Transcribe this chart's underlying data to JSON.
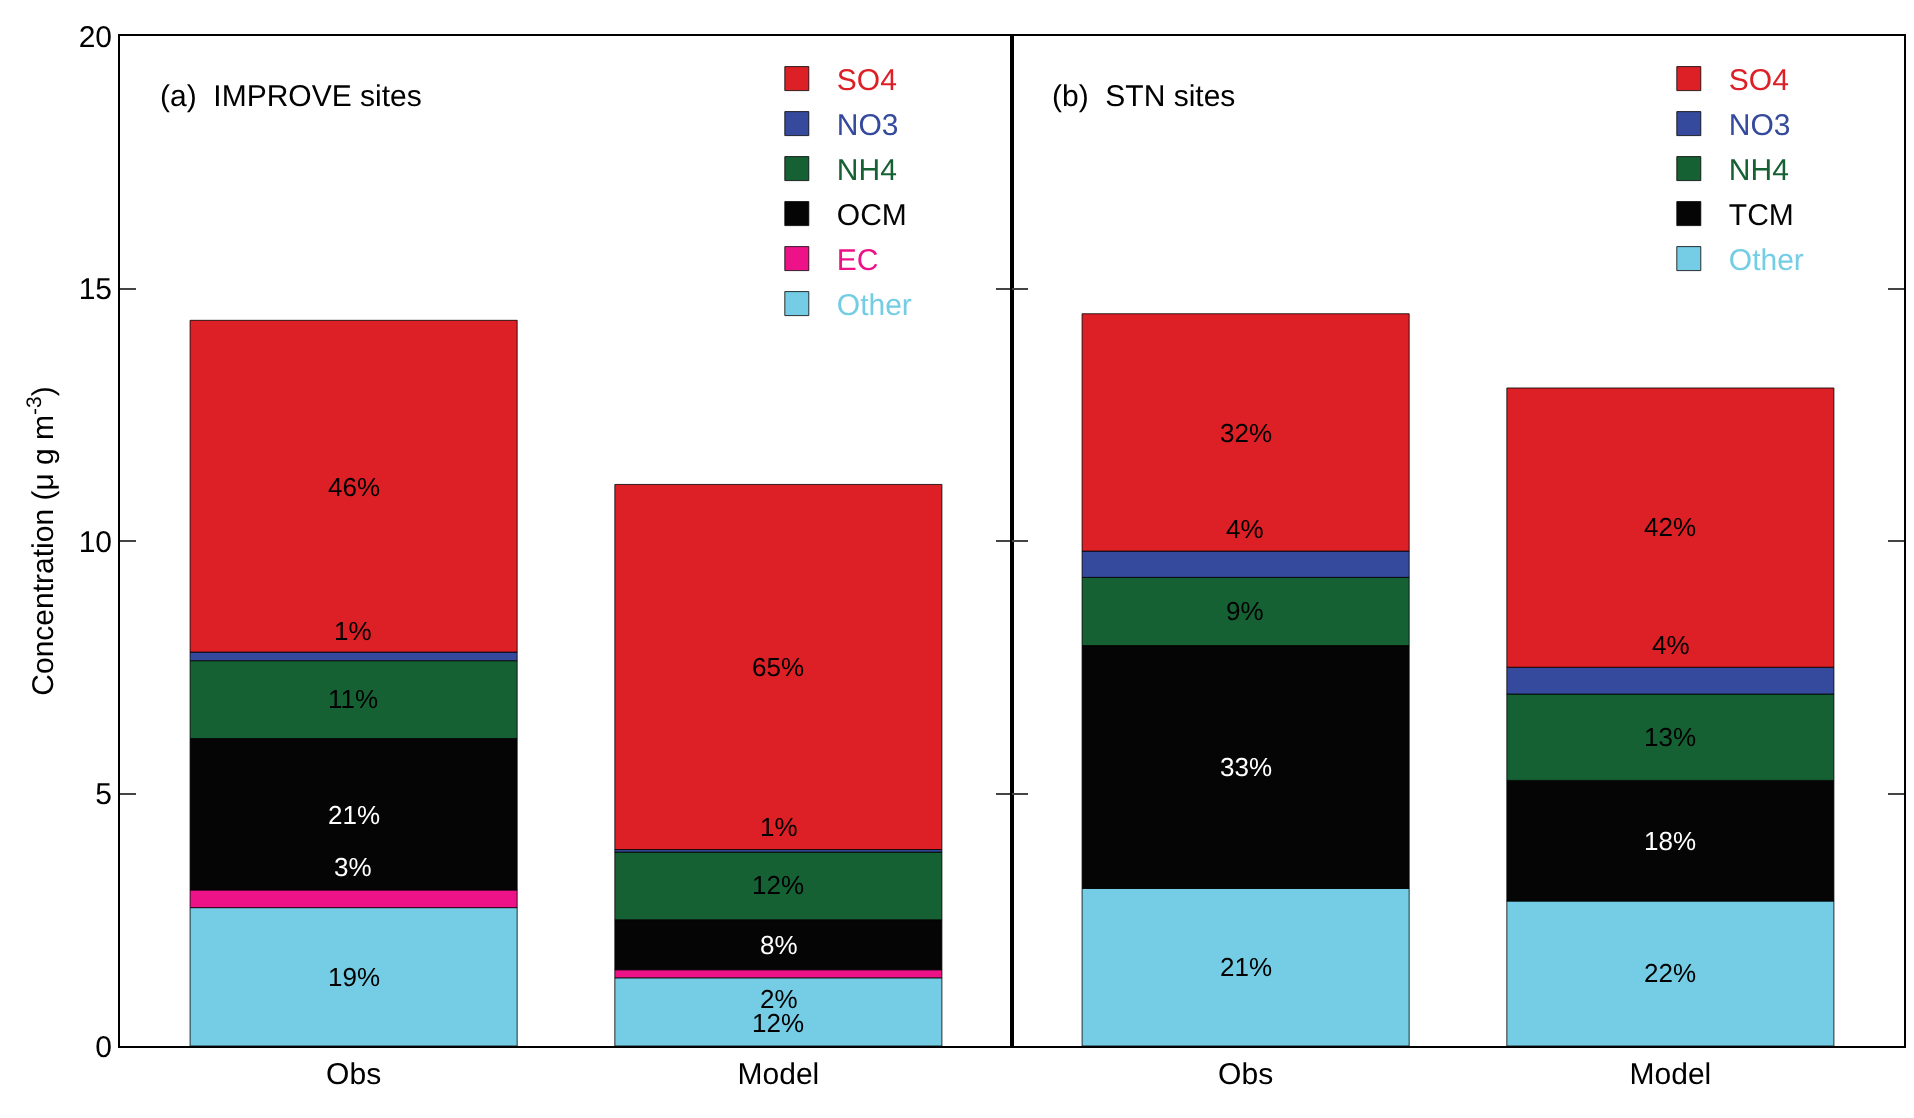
{
  "chart_data": [
    {
      "type": "bar",
      "title": "(a)  IMPROVE sites",
      "ylabel": "Concentration (μ g m$^{-3}$)",
      "categories": [
        "Obs",
        "Model"
      ],
      "stacked": true,
      "ylim": [
        0,
        20
      ],
      "yticks": [
        0,
        5,
        10,
        15,
        20
      ],
      "legend": "top right",
      "series": [
        {
          "name": "Other",
          "color": "#74cde4",
          "values": [
            2.74,
            1.35
          ]
        },
        {
          "name": "EC",
          "color": "#ee1289",
          "values": [
            0.35,
            0.16
          ]
        },
        {
          "name": "OCM",
          "color": "#050505",
          "values": [
            3.0,
            0.99
          ]
        },
        {
          "name": "NH4",
          "color": "#166134",
          "values": [
            1.54,
            1.34
          ]
        },
        {
          "name": "NO3",
          "color": "#354a9c",
          "values": [
            0.17,
            0.05
          ]
        },
        {
          "name": "SO4",
          "color": "#dd1f26",
          "values": [
            6.57,
            7.23
          ]
        }
      ],
      "annotations": [
        "19%",
        "12%",
        "3%",
        "2%",
        "21%",
        "8%",
        "11%",
        "12%",
        "1%",
        "1%",
        "46%",
        "65%"
      ]
    },
    {
      "type": "bar",
      "title": "(b)  STN sites",
      "categories": [
        "Obs",
        "Model"
      ],
      "stacked": true,
      "ylim": [
        0,
        20
      ],
      "yticks": [
        0,
        5,
        10,
        15,
        20
      ],
      "tick_labels": "x",
      "legend": "top right",
      "series": [
        {
          "name": "Other",
          "color": "#74cde4",
          "values": [
            3.12,
            2.87
          ]
        },
        {
          "name": "TCM",
          "color": "#050505",
          "values": [
            4.81,
            2.39
          ]
        },
        {
          "name": "NH4",
          "color": "#166134",
          "values": [
            1.35,
            1.71
          ]
        },
        {
          "name": "NO3",
          "color": "#354a9c",
          "values": [
            0.52,
            0.53
          ]
        },
        {
          "name": "SO4",
          "color": "#dd1f26",
          "values": [
            4.7,
            5.53
          ]
        }
      ],
      "annotations": [
        "21%",
        "22%",
        "33%",
        "18%",
        "9%",
        "13%",
        "4%",
        "4%",
        "32%",
        "42%"
      ]
    }
  ]
}
